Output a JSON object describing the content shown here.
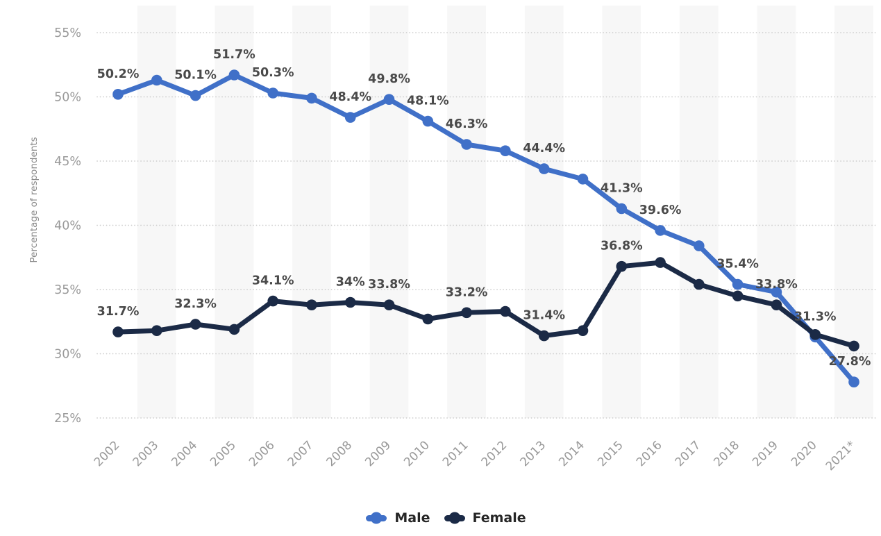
{
  "colors": {
    "male_blue": "#4070c8",
    "female_navy": "#1b2a46",
    "grid": "#cdcdcd",
    "band": "#f7f7f7",
    "axis_text": "#999999",
    "axis_title": "#8a8a8a",
    "data_label": "#4a4a4a",
    "legend_text": "#262626",
    "background": "#ffffff"
  },
  "chart_data": {
    "type": "line",
    "x": [
      "2002",
      "2003",
      "2004",
      "2005",
      "2006",
      "2007",
      "2008",
      "2009",
      "2010",
      "2011",
      "2012",
      "2013",
      "2014",
      "2015",
      "2016",
      "2017",
      "2018",
      "2019",
      "2020",
      "2021*"
    ],
    "xlabel": "",
    "ylabel": "Percentage of respondents",
    "ylim": [
      25,
      55
    ],
    "yticks": [
      25,
      30,
      35,
      40,
      45,
      50,
      55
    ],
    "ytick_suffix": "%",
    "grid": "horizontal-dotted",
    "background_bands": "alternating light-gray vertical bands on odd years",
    "legend_position": "bottom-center",
    "series": [
      {
        "name": "Male",
        "color": "#4070c8",
        "values": [
          50.2,
          51.3,
          50.1,
          51.7,
          50.3,
          49.9,
          48.4,
          49.8,
          48.1,
          46.3,
          45.8,
          44.4,
          43.6,
          41.3,
          39.6,
          38.4,
          35.4,
          34.8,
          31.3,
          27.8
        ],
        "labels": [
          "50.2%",
          null,
          "50.1%",
          "51.7%",
          "50.3%",
          null,
          "48.4%",
          "49.8%",
          "48.1%",
          "46.3%",
          null,
          "44.4%",
          null,
          "41.3%",
          "39.6%",
          null,
          "35.4%",
          null,
          "31.3%",
          "27.8%"
        ]
      },
      {
        "name": "Female",
        "color": "#1b2a46",
        "values": [
          31.7,
          31.8,
          32.3,
          31.9,
          34.1,
          33.8,
          34,
          33.8,
          32.7,
          33.2,
          33.3,
          31.4,
          31.8,
          36.8,
          37.1,
          35.4,
          34.5,
          33.8,
          31.5,
          30.6
        ],
        "labels": [
          "31.7%",
          null,
          "32.3%",
          null,
          "34.1%",
          null,
          "34%",
          "33.8%",
          null,
          "33.2%",
          null,
          "31.4%",
          null,
          "36.8%",
          null,
          null,
          null,
          "33.8%",
          null,
          null
        ]
      }
    ]
  }
}
